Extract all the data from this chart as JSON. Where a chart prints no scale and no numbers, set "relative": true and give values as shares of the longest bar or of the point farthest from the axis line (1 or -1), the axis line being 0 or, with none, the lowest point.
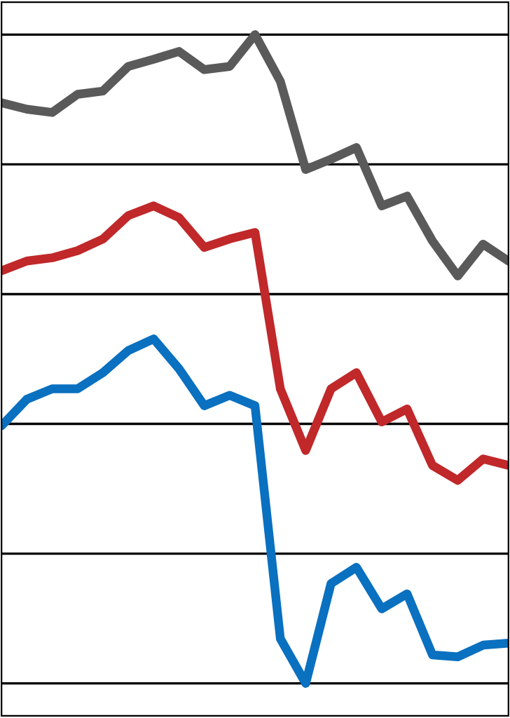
{
  "chart_data": {
    "type": "line",
    "relative": true,
    "grid": "y",
    "marker": "none",
    "line_style": "solid",
    "categories": [
      null,
      null,
      null,
      null,
      null,
      null,
      null,
      null,
      null,
      null,
      null,
      null,
      null,
      null,
      null,
      null,
      null,
      null,
      null,
      null,
      null
    ],
    "series": [
      {
        "color": "#5a5a5a",
        "values": [
          0.895,
          0.885,
          0.88,
          0.908,
          0.913,
          0.951,
          0.962,
          0.974,
          0.946,
          0.951,
          1,
          0.928,
          0.792,
          0.808,
          0.826,
          0.736,
          0.751,
          0.682,
          0.628,
          0.677,
          0.651
        ]
      },
      {
        "color": "#c0282a",
        "values": [
          0.636,
          0.651,
          0.656,
          0.667,
          0.685,
          0.721,
          0.736,
          0.718,
          0.672,
          0.685,
          0.695,
          0.454,
          0.359,
          0.454,
          0.479,
          0.403,
          0.423,
          0.336,
          0.313,
          0.346,
          0.336
        ]
      },
      {
        "color": "#0a70c0",
        "values": [
          0.397,
          0.438,
          0.454,
          0.454,
          0.479,
          0.513,
          0.531,
          0.485,
          0.428,
          0.444,
          0.428,
          0.069,
          0,
          0.154,
          0.179,
          0.115,
          0.138,
          0.044,
          0.041,
          0.059,
          0.062
        ]
      }
    ]
  }
}
